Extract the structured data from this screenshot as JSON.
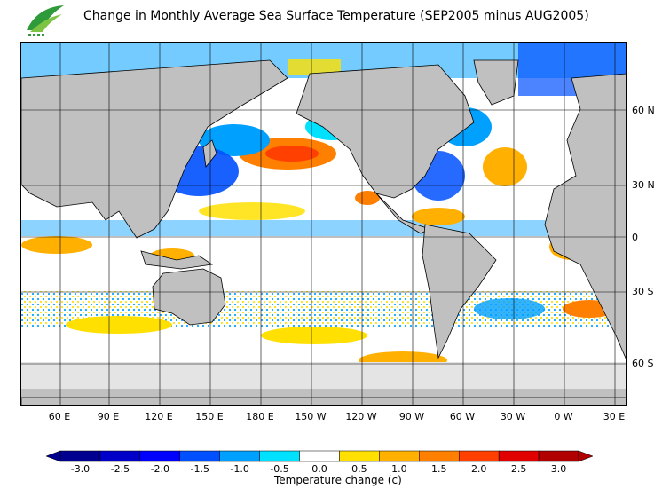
{
  "title": "Change in Monthly Average Sea Surface Temperature (SEP2005 minus AUG2005)",
  "logo_icon": "green-leaf-wave-logo",
  "map": {
    "lat_labels": [
      "60 N",
      "30 N",
      "0",
      "30 S",
      "60 S"
    ],
    "lon_labels": [
      "60 E",
      "90 E",
      "120 E",
      "150 E",
      "180 E",
      "150 W",
      "120 W",
      "90 W",
      "60 W",
      "30 W",
      "0 W",
      "30 E"
    ],
    "land_color": "#c0c0c0",
    "ice_color": "#e4e4e4",
    "grid": true
  },
  "colorbar": {
    "label": "Temperature change  (c)",
    "ticks": [
      "-3.0",
      "-2.5",
      "-2.0",
      "-1.5",
      "-1.0",
      "-0.5",
      "0.0",
      "0.5",
      "1.0",
      "1.5",
      "2.0",
      "2.5",
      "3.0"
    ],
    "colors": [
      "#000090",
      "#0000c8",
      "#0000ff",
      "#0050ff",
      "#00a0ff",
      "#00e0ff",
      "#ffffff",
      "#ffe000",
      "#ffb000",
      "#ff8000",
      "#ff4000",
      "#e00000",
      "#b00000"
    ]
  }
}
